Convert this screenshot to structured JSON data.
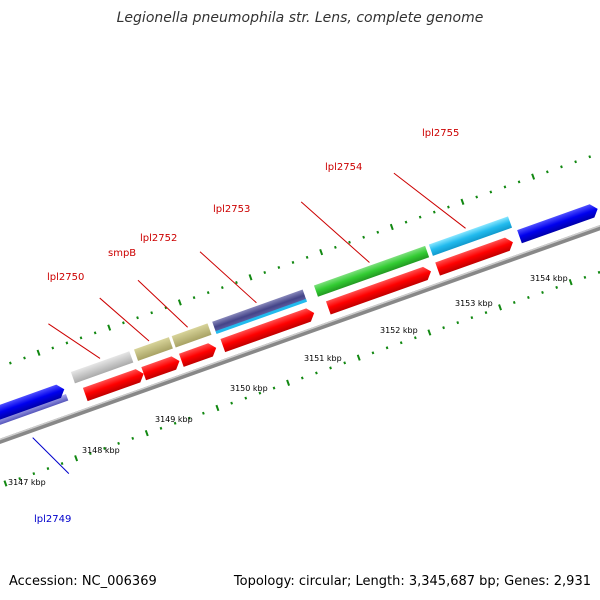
{
  "title": "Legionella pneumophila str. Lens, complete genome",
  "footer": {
    "accession": "Accession: NC_006369",
    "topology": "Topology: circular; Length: 3,345,687 bp; Genes: 2,931"
  },
  "colors": {
    "reverse_cds": "#ff0000",
    "forward_cds": "#0000ee",
    "gene_label_red": "#cc0000",
    "gene_label_blue": "#0000cc",
    "backbone": "#888888",
    "tick": "#118811"
  },
  "tick_labels": [
    {
      "label": "3147 kbp",
      "position_kbp": 3147
    },
    {
      "label": "3148 kbp",
      "position_kbp": 3148
    },
    {
      "label": "3149 kbp",
      "position_kbp": 3149
    },
    {
      "label": "3150 kbp",
      "position_kbp": 3150
    },
    {
      "label": "3151 kbp",
      "position_kbp": 3151
    },
    {
      "label": "3152 kbp",
      "position_kbp": 3152
    },
    {
      "label": "3153 kbp",
      "position_kbp": 3153
    },
    {
      "label": "3154 kbp",
      "position_kbp": 3154
    }
  ],
  "genes": [
    {
      "label": "lpl2749",
      "strand": "forward",
      "color": "blue"
    },
    {
      "label": "lpl2750",
      "strand": "reverse",
      "color": "gray"
    },
    {
      "label": "smpB",
      "strand": "reverse",
      "color": "khaki"
    },
    {
      "label": "lpl2752",
      "strand": "reverse",
      "color": "khaki"
    },
    {
      "label": "lpl2753",
      "strand": "reverse",
      "color": "slate-cyan"
    },
    {
      "label": "lpl2754",
      "strand": "reverse",
      "color": "green"
    },
    {
      "label": "lpl2755",
      "strand": "reverse",
      "color": "cyan"
    }
  ]
}
